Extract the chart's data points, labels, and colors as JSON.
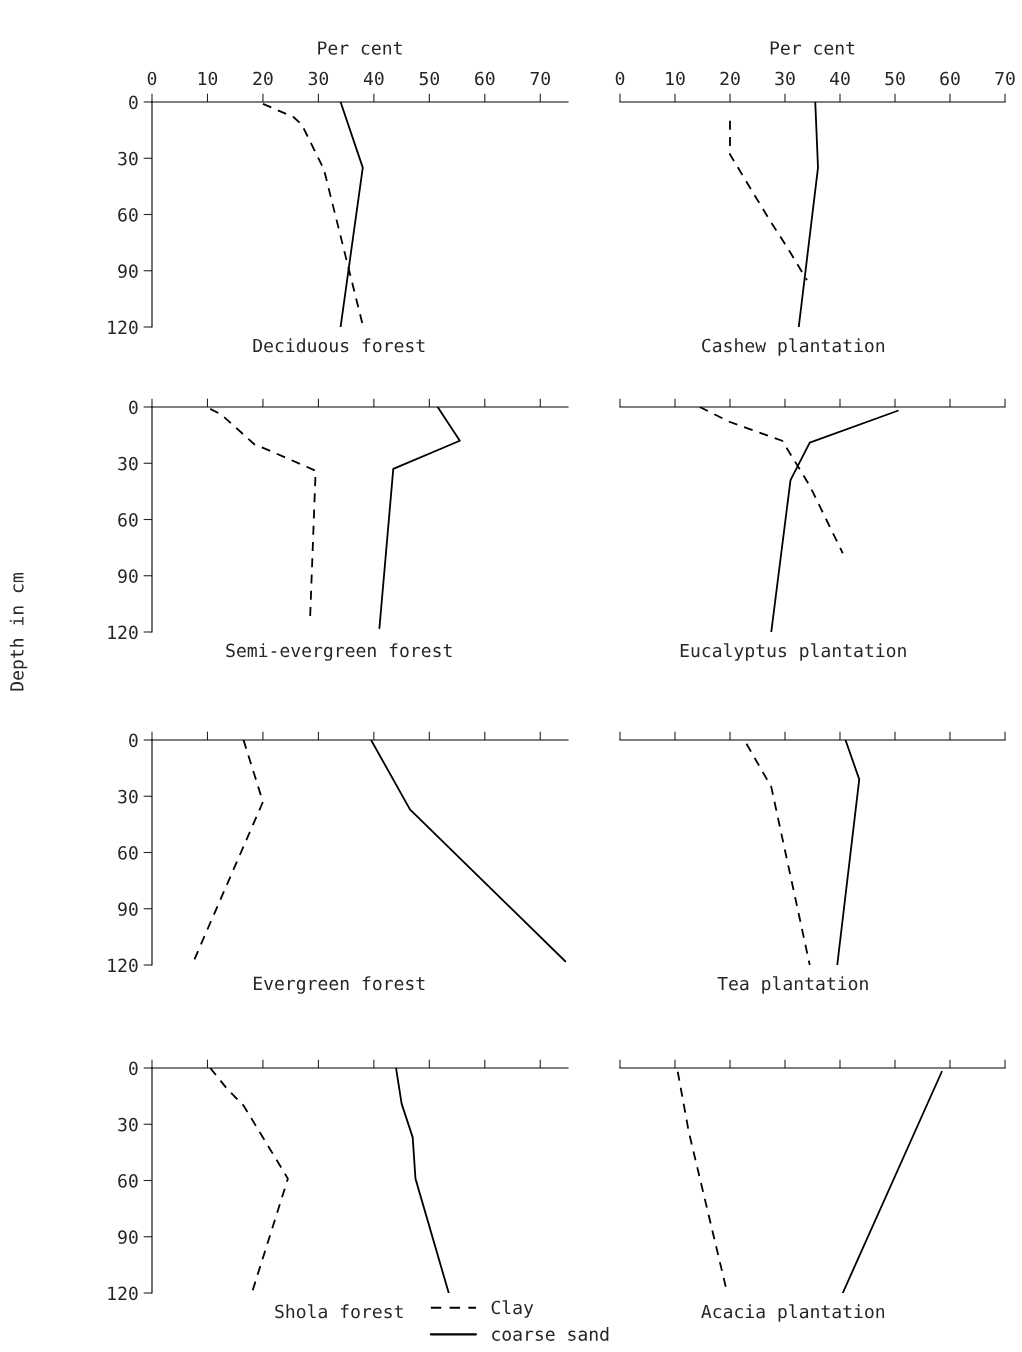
{
  "chart_data": [
    {
      "type": "line",
      "title": "Deciduous forest",
      "xlabel": "Per cent",
      "xlim": [
        0,
        75
      ],
      "xticks": [
        0,
        10,
        20,
        30,
        40,
        50,
        60,
        70
      ],
      "ylim": [
        120,
        0
      ],
      "yticks": [
        0,
        30,
        60,
        90,
        120
      ],
      "series": [
        {
          "color": "#000000",
          "line_style": "dashed",
          "x": [
            20,
            25.5,
            27,
            31,
            38
          ],
          "values": [
            1,
            8,
            12,
            36,
            119
          ]
        },
        {
          "color": "#000000",
          "line_style": "solid",
          "x": [
            34,
            38,
            34
          ],
          "values": [
            0,
            35,
            120
          ]
        }
      ]
    },
    {
      "type": "line",
      "title": "Cashew plantation",
      "xlabel": "Per cent",
      "xlim": [
        0,
        70
      ],
      "xticks": [
        0,
        10,
        20,
        30,
        40,
        50,
        60,
        70
      ],
      "ylim": [
        120,
        0
      ],
      "yticks": [
        0,
        30,
        60,
        90,
        120
      ],
      "tick_labels": "x",
      "series": [
        {
          "color": "#000000",
          "line_style": "dashed",
          "x": [
            20,
            20,
            27,
            30.5,
            34
          ],
          "values": [
            10,
            28,
            62,
            78,
            95
          ]
        },
        {
          "color": "#000000",
          "line_style": "solid",
          "x": [
            35.5,
            36,
            32.5
          ],
          "values": [
            0,
            35,
            120
          ]
        }
      ]
    },
    {
      "type": "line",
      "title": "Semi-evergreen forest",
      "ylabel": "Depth in cm",
      "xlim": [
        0,
        75
      ],
      "xticks": [
        0,
        10,
        20,
        30,
        40,
        50,
        60,
        70
      ],
      "ylim": [
        120,
        0
      ],
      "yticks": [
        0,
        30,
        60,
        90,
        120
      ],
      "tick_labels": "y",
      "series": [
        {
          "color": "#000000",
          "line_style": "dashed",
          "x": [
            10.5,
            12.5,
            18.5,
            21,
            29.5,
            28.5
          ],
          "values": [
            1,
            4,
            20,
            23,
            34,
            113
          ]
        },
        {
          "color": "#000000",
          "line_style": "solid",
          "x": [
            51.5,
            55.5,
            43.5,
            41
          ],
          "values": [
            0,
            18,
            33,
            118
          ]
        }
      ]
    },
    {
      "type": "line",
      "title": "Eucalyptus plantation",
      "xlim": [
        0,
        70
      ],
      "xticks": [
        0,
        10,
        20,
        30,
        40,
        50,
        60,
        70
      ],
      "ylim": [
        120,
        0
      ],
      "yticks": [
        0,
        30,
        60,
        90,
        120
      ],
      "tick_labels": false,
      "series": [
        {
          "color": "#000000",
          "line_style": "dashed",
          "x": [
            14.5,
            20,
            29.5,
            34.5,
            40.5
          ],
          "values": [
            0,
            8,
            18,
            42,
            78
          ]
        },
        {
          "color": "#000000",
          "line_style": "solid",
          "x": [
            50.5,
            34.5,
            31,
            27.5
          ],
          "values": [
            2,
            19,
            39,
            120
          ]
        }
      ]
    },
    {
      "type": "line",
      "title": "Evergreen forest",
      "xlim": [
        0,
        75
      ],
      "xticks": [
        0,
        10,
        20,
        30,
        40,
        50,
        60,
        70
      ],
      "ylim": [
        120,
        0
      ],
      "yticks": [
        0,
        30,
        60,
        90,
        120
      ],
      "tick_labels": "y",
      "series": [
        {
          "color": "#000000",
          "line_style": "dashed",
          "x": [
            16.5,
            20,
            7.5
          ],
          "values": [
            0,
            33,
            118
          ]
        },
        {
          "color": "#000000",
          "line_style": "solid",
          "x": [
            39.5,
            46.5,
            74.5
          ],
          "values": [
            0,
            37,
            118
          ]
        }
      ]
    },
    {
      "type": "line",
      "title": "Tea plantation",
      "xlim": [
        0,
        70
      ],
      "xticks": [
        0,
        10,
        20,
        30,
        40,
        50,
        60,
        70
      ],
      "ylim": [
        120,
        0
      ],
      "yticks": [
        0,
        30,
        60,
        90,
        120
      ],
      "tick_labels": false,
      "series": [
        {
          "color": "#000000",
          "line_style": "dashed",
          "x": [
            23,
            27.5,
            34.5
          ],
          "values": [
            2,
            25,
            120
          ]
        },
        {
          "color": "#000000",
          "line_style": "solid",
          "x": [
            41,
            43.5,
            39.5
          ],
          "values": [
            0,
            21,
            120
          ]
        }
      ]
    },
    {
      "type": "line",
      "title": "Shola forest",
      "xlim": [
        0,
        75
      ],
      "xticks": [
        0,
        10,
        20,
        30,
        40,
        50,
        60,
        70
      ],
      "ylim": [
        120,
        0
      ],
      "yticks": [
        0,
        30,
        60,
        90,
        120
      ],
      "tick_labels": "y",
      "legend": "bottom right",
      "series": [
        {
          "name": "Clay",
          "color": "#000000",
          "line_style": "dashed",
          "x": [
            10.5,
            13.5,
            16.5,
            24.5,
            18
          ],
          "values": [
            0,
            11,
            20,
            59,
            120
          ]
        },
        {
          "name": "coarse sand",
          "color": "#000000",
          "line_style": "solid",
          "x": [
            44,
            45,
            47,
            47.5,
            53.5
          ],
          "values": [
            0,
            19,
            37,
            59,
            120
          ]
        }
      ]
    },
    {
      "type": "line",
      "title": "Acacia plantation",
      "xlim": [
        0,
        70
      ],
      "xticks": [
        0,
        10,
        20,
        30,
        40,
        50,
        60,
        70
      ],
      "ylim": [
        120,
        0
      ],
      "yticks": [
        0,
        30,
        60,
        90,
        120
      ],
      "tick_labels": false,
      "series": [
        {
          "color": "#000000",
          "line_style": "dashed",
          "x": [
            10.5,
            12.5,
            19.5
          ],
          "values": [
            2,
            34,
            120
          ]
        },
        {
          "color": "#000000",
          "line_style": "solid",
          "x": [
            58.5,
            40.5
          ],
          "values": [
            2,
            120
          ]
        }
      ]
    }
  ]
}
